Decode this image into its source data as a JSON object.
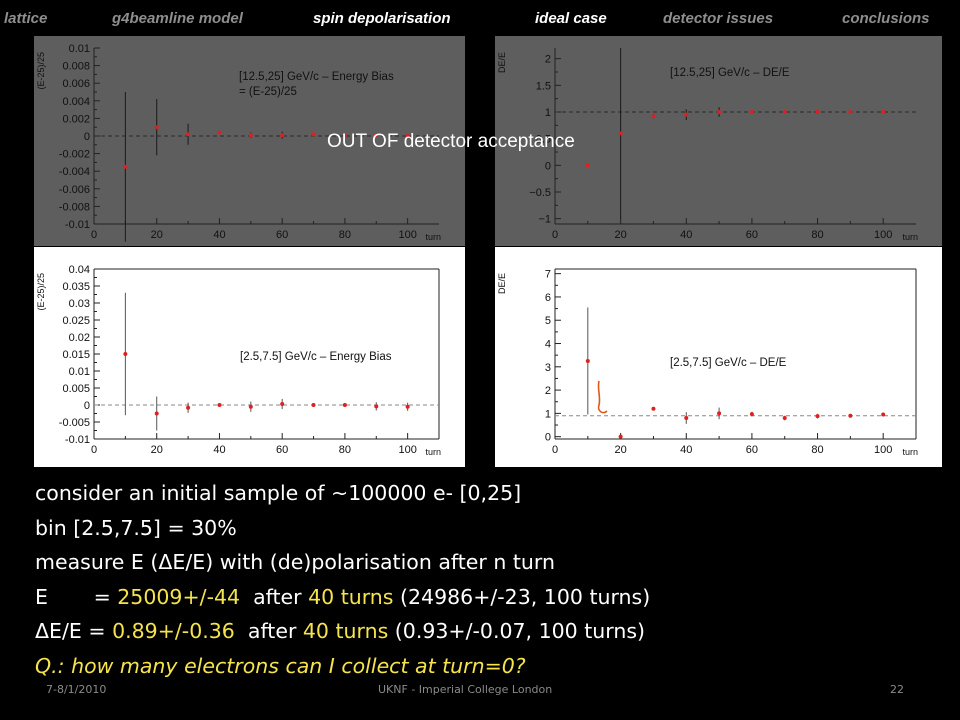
{
  "nav": {
    "items": [
      {
        "label": "lattice",
        "active": false
      },
      {
        "label": "g4beamline model",
        "active": false
      },
      {
        "label": "spin depolarisation",
        "active": true
      },
      {
        "label": "ideal case",
        "active": true
      },
      {
        "label": "detector issues",
        "active": false
      },
      {
        "label": "conclusions",
        "active": false
      }
    ]
  },
  "overlay": {
    "text": "OUT OF detector acceptance"
  },
  "text_lines": {
    "line1": "consider an initial sample of ~100000 e- [0,25]",
    "line2": "bin [2.5,7.5] = 30%",
    "line3_a": "measure E (",
    "line3_delta": "Δ",
    "line3_b": "E/E) with (de)polarisation after n turn",
    "line4_a": "E       = ",
    "line4_val": "25009+/-44",
    "line4_b": "  after ",
    "line4_turns": "40 turns",
    "line4_c": " (24986+/-23, 100 turns)",
    "line5_delta": "Δ",
    "line5_a": "E/E = ",
    "line5_val": "0.89+/-0.36",
    "line5_b": "  after ",
    "line5_turns": "40 turns",
    "line5_c": " (0.93+/-0.07, 100 turns)",
    "line6": "Q.: how many electrons can I collect at turn=0?"
  },
  "footer": {
    "date": "7-8/1/2010",
    "venue": "UKNF - Imperial College London",
    "page": "22"
  },
  "chart_data": [
    {
      "type": "scatter",
      "title": "[12.5,25] GeV/c – Energy Bias = (E-25)/25",
      "ylabel": "(E-25)/25",
      "xlabel": "turn",
      "xlim": [
        0,
        110
      ],
      "ylim": [
        -0.01,
        0.01
      ],
      "x": [
        10,
        20,
        30,
        40,
        50,
        60,
        70,
        80,
        90,
        100
      ],
      "y": [
        -0.0035,
        0.001,
        0.0002,
        0.0004,
        0.0001,
        0.0001,
        0.0002,
        0.0,
        0.0001,
        0.0
      ],
      "yerr": [
        0.0085,
        0.0032,
        0.0012,
        0.0002,
        0.0003,
        0.0004,
        0.0002,
        0.0002,
        0.0002,
        0.0002
      ],
      "yticks": [
        "0.01",
        "0.008",
        "0.006",
        "0.004",
        "0.002",
        "0",
        "-0.002",
        "-0.004",
        "-0.006",
        "-0.008",
        "-0.01"
      ],
      "ytick_vals": [
        0.01,
        0.008,
        0.006,
        0.004,
        0.002,
        0,
        -0.002,
        -0.004,
        -0.006,
        -0.008,
        -0.01
      ],
      "xticks": [
        "0",
        "20",
        "40",
        "60",
        "80",
        "100"
      ],
      "xtick_vals": [
        0,
        20,
        40,
        60,
        80,
        100
      ],
      "ref_line": 0,
      "background": "#5e5e5e"
    },
    {
      "type": "scatter",
      "title": "[12.5,25] GeV/c – DE/E",
      "ylabel": "DE/E",
      "xlabel": "turn",
      "xlim": [
        0,
        110
      ],
      "ylim": [
        -1.1,
        2.2
      ],
      "x": [
        10,
        20,
        30,
        40,
        50,
        60,
        70,
        80,
        90,
        100
      ],
      "y": [
        0.0,
        0.6,
        0.92,
        0.95,
        1.0,
        1.0,
        1.0,
        1.0,
        1.0,
        1.0
      ],
      "yerr": [
        0.0,
        1.6,
        0.04,
        0.1,
        0.09,
        0.03,
        0.03,
        0.03,
        0.02,
        0.02
      ],
      "yticks": [
        "2",
        "1.5",
        "1",
        "0.5",
        "0",
        "−0.5",
        "−1"
      ],
      "ytick_vals": [
        2,
        1.5,
        1,
        0.5,
        0,
        -0.5,
        -1
      ],
      "xticks": [
        "0",
        "20",
        "40",
        "60",
        "80",
        "100"
      ],
      "xtick_vals": [
        0,
        20,
        40,
        60,
        80,
        100
      ],
      "ref_line": 1,
      "background": "#5e5e5e"
    },
    {
      "type": "scatter",
      "title": "[2.5,7.5] GeV/c – Energy Bias",
      "ylabel": "(E-25)/25",
      "xlabel": "turn",
      "xlim": [
        0,
        110
      ],
      "ylim": [
        -0.01,
        0.04
      ],
      "x": [
        10,
        20,
        30,
        40,
        50,
        60,
        70,
        80,
        90,
        100
      ],
      "y": [
        0.015,
        -0.0025,
        -0.0008,
        0.0,
        -0.0005,
        0.0003,
        0.0,
        0.0,
        -0.0004,
        -0.0005
      ],
      "yerr": [
        0.018,
        0.005,
        0.0015,
        0.0004,
        0.0015,
        0.0015,
        0.0005,
        0.0005,
        0.0012,
        0.0012
      ],
      "yticks": [
        "0.04",
        "0.035",
        "0.03",
        "0.025",
        "0.02",
        "0.015",
        "0.01",
        "0.005",
        "0",
        "-0.005",
        "-0.01"
      ],
      "ytick_vals": [
        0.04,
        0.035,
        0.03,
        0.025,
        0.02,
        0.015,
        0.01,
        0.005,
        0,
        -0.005,
        -0.01
      ],
      "xticks": [
        "0",
        "20",
        "40",
        "60",
        "80",
        "100"
      ],
      "xtick_vals": [
        0,
        20,
        40,
        60,
        80,
        100
      ],
      "ref_line": 0,
      "background": "#ffffff"
    },
    {
      "type": "scatter",
      "title": "[2.5,7.5] GeV/c – DE/E",
      "ylabel": "DE/E",
      "xlabel": "turn",
      "xlim": [
        0,
        110
      ],
      "ylim": [
        -0.1,
        7.2
      ],
      "x": [
        10,
        20,
        30,
        40,
        50,
        60,
        70,
        80,
        90,
        100
      ],
      "y": [
        3.25,
        0.0,
        1.2,
        0.8,
        1.0,
        0.97,
        0.8,
        0.88,
        0.9,
        0.95
      ],
      "yerr": [
        2.3,
        0.05,
        0.05,
        0.25,
        0.25,
        0.1,
        0.1,
        0.1,
        0.08,
        0.08
      ],
      "yticks": [
        "7",
        "6",
        "5",
        "4",
        "3",
        "2",
        "1",
        "0"
      ],
      "ytick_vals": [
        7,
        6,
        5,
        4,
        3,
        2,
        1,
        0
      ],
      "xticks": [
        "0",
        "20",
        "40",
        "60",
        "80",
        "100"
      ],
      "xtick_vals": [
        0,
        20,
        40,
        60,
        80,
        100
      ],
      "ref_line": 0.9,
      "background": "#ffffff"
    }
  ]
}
